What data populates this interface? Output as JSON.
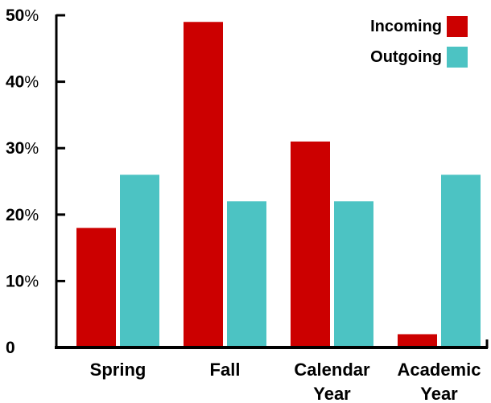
{
  "chart_data": {
    "type": "bar",
    "categories": [
      [
        "Spring"
      ],
      [
        "Fall"
      ],
      [
        "Calendar",
        "Year"
      ],
      [
        "Academic",
        "Year"
      ]
    ],
    "series": [
      {
        "name": "Incoming",
        "color": "#cc0000",
        "values": [
          18,
          49,
          31,
          2
        ]
      },
      {
        "name": "Outgoing",
        "color": "#4cc3c3",
        "values": [
          26,
          22,
          22,
          26
        ]
      }
    ],
    "ylim": [
      0,
      50
    ],
    "yticks": [
      {
        "value": 0,
        "num": "0",
        "unit": ""
      },
      {
        "value": 10,
        "num": "10",
        "unit": "%"
      },
      {
        "value": 20,
        "num": "20",
        "unit": "%"
      },
      {
        "value": 30,
        "num": "30",
        "unit": "%"
      },
      {
        "value": 40,
        "num": "40",
        "unit": "%"
      },
      {
        "value": 50,
        "num": "50",
        "unit": "%"
      }
    ],
    "legend_position": "top-right",
    "grid": false
  }
}
